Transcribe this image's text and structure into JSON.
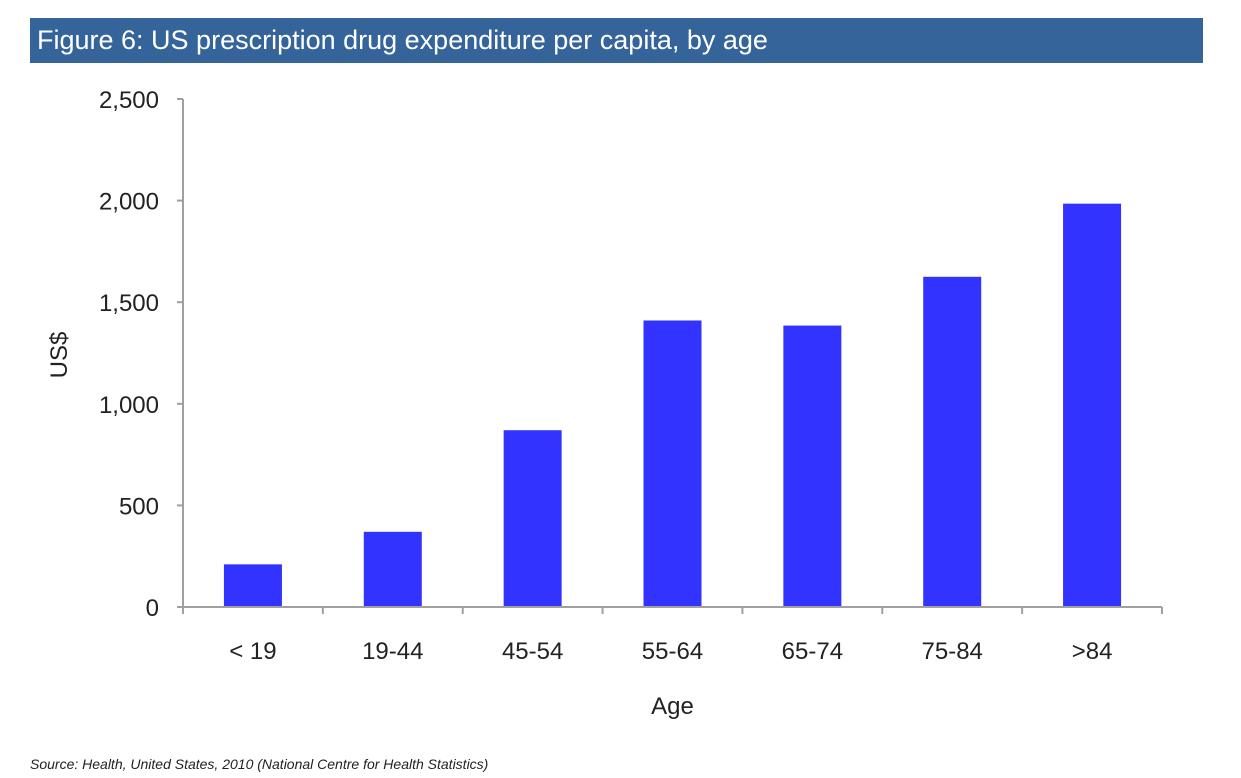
{
  "header": {
    "title": "Figure 6: US prescription drug expenditure per capita, by age"
  },
  "footer": {
    "source": "Source: Health, United States, 2010 (National Centre for Health Statistics)"
  },
  "colors": {
    "title_bar": "#35649a",
    "bar": "#3333ff",
    "axis": "#a0a0a0"
  },
  "chart_data": {
    "type": "bar",
    "title": "Figure 6: US prescription drug expenditure per capita, by age",
    "xlabel": "Age",
    "ylabel": "US$",
    "categories": [
      "< 19",
      "19-44",
      "45-54",
      "55-64",
      "65-74",
      "75-84",
      ">84"
    ],
    "series": [
      {
        "values": [
          210,
          370,
          870,
          1410,
          1385,
          1625,
          1985
        ]
      }
    ],
    "ylim": [
      0,
      2500
    ],
    "yticks": [
      0,
      500,
      1000,
      1500,
      2000,
      2500
    ],
    "ytick_labels": [
      "0",
      "500",
      "1,000",
      "1,500",
      "2,000",
      "2,500"
    ],
    "grid": false,
    "legend": "none"
  }
}
